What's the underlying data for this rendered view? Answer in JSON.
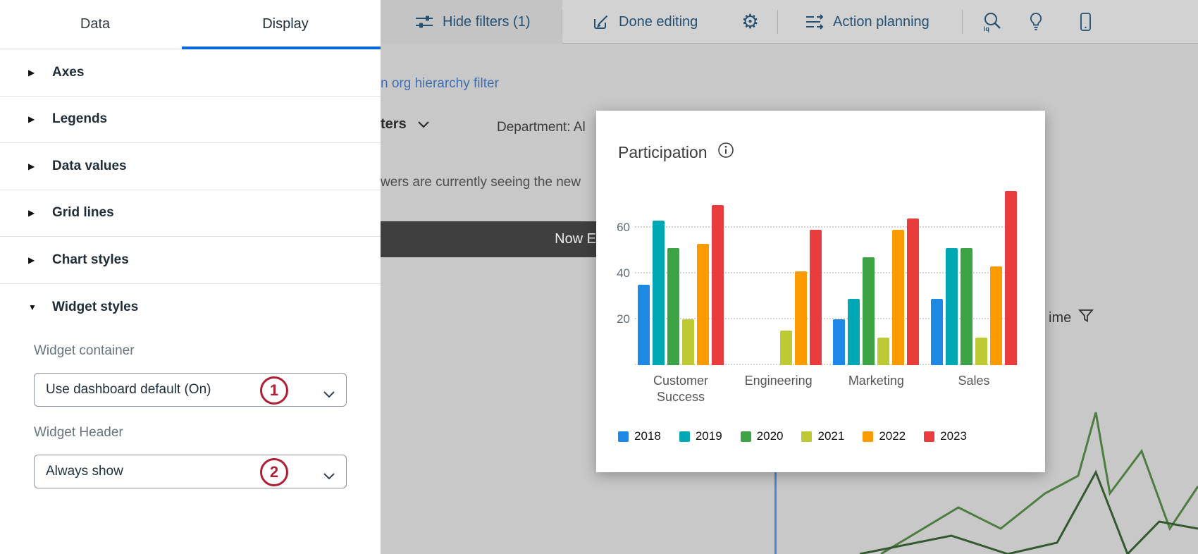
{
  "left_panel": {
    "tabs": [
      {
        "label": "Data",
        "active": false
      },
      {
        "label": "Display",
        "active": true
      }
    ],
    "sections": [
      {
        "label": "Axes",
        "expanded": false
      },
      {
        "label": "Legends",
        "expanded": false
      },
      {
        "label": "Data values",
        "expanded": false
      },
      {
        "label": "Grid lines",
        "expanded": false
      },
      {
        "label": "Chart styles",
        "expanded": false
      },
      {
        "label": "Widget styles",
        "expanded": true
      }
    ],
    "widget_styles": {
      "container_label": "Widget container",
      "container_value": "Use dashboard default (On)",
      "container_step": "1",
      "header_label": "Widget Header",
      "header_value": "Always show",
      "header_step": "2"
    }
  },
  "toolbar": {
    "hide_filters": "Hide filters (1)",
    "done_editing": "Done editing",
    "action_planning": "Action planning"
  },
  "background": {
    "org_link": "n org hierarchy filter",
    "filters_partial": "ters",
    "department": "Department: Al",
    "notice": "wers are currently seeing the new",
    "banner": "Now E",
    "over_time_partial": "ime"
  },
  "chart_data": {
    "type": "bar",
    "title": "Participation",
    "categories": [
      "Customer Success",
      "Engineering",
      "Marketing",
      "Sales"
    ],
    "series": [
      {
        "name": "2018",
        "color": "#1e88e5",
        "values": [
          35,
          0,
          20,
          29
        ]
      },
      {
        "name": "2019",
        "color": "#00a8b5",
        "values": [
          63,
          0,
          29,
          51
        ]
      },
      {
        "name": "2020",
        "color": "#3da445",
        "values": [
          51,
          0,
          47,
          51
        ]
      },
      {
        "name": "2021",
        "color": "#bdca33",
        "values": [
          20,
          15,
          12,
          12
        ]
      },
      {
        "name": "2022",
        "color": "#fb9b00",
        "values": [
          53,
          41,
          59,
          43
        ]
      },
      {
        "name": "2023",
        "color": "#e93c3c",
        "values": [
          70,
          59,
          64,
          76
        ]
      }
    ],
    "ylim": [
      0,
      80
    ],
    "yticks": [
      20,
      40,
      60
    ],
    "grid": "dotted horizontal",
    "legend_position": "bottom"
  },
  "colors": {
    "accent_blue": "#0768dd",
    "step_red": "#b01e35",
    "toolbar_text": "#235073"
  }
}
